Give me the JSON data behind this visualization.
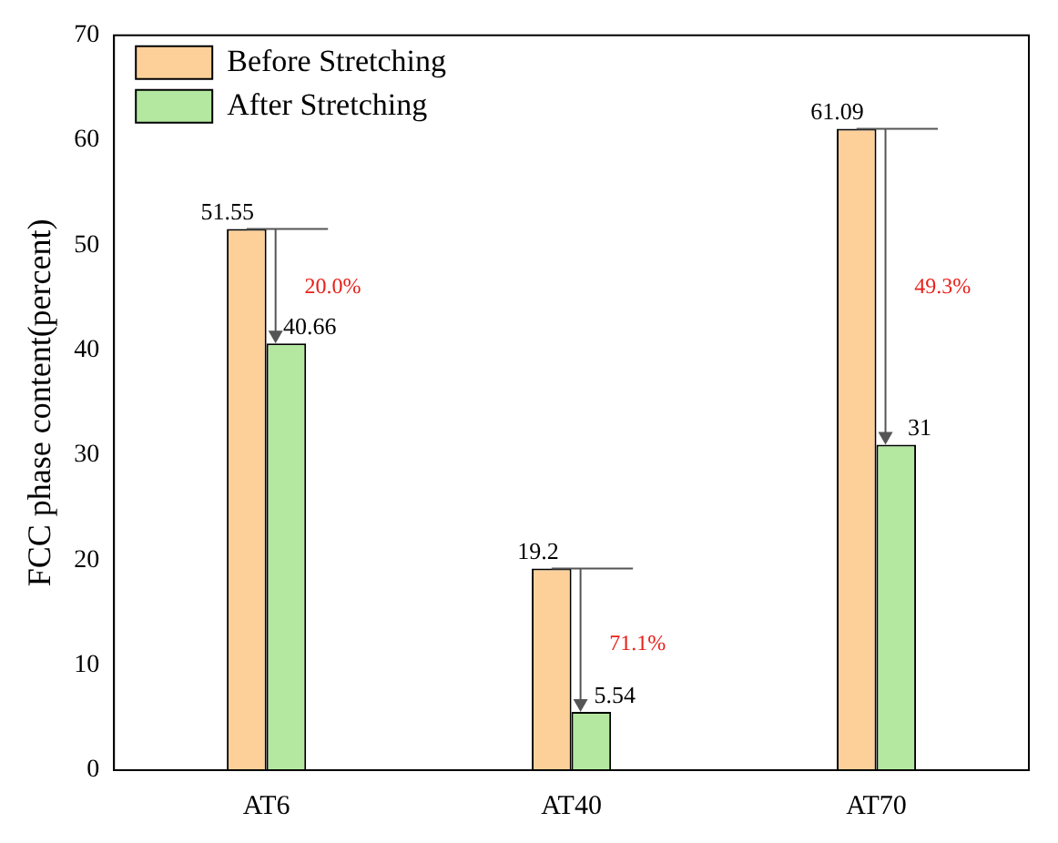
{
  "chart_data": {
    "type": "bar",
    "ylabel": "FCC phase content(percent)",
    "categories": [
      "AT6",
      "AT40",
      "AT70"
    ],
    "series": [
      {
        "name": "Before Stretching",
        "color": "#fdd09a",
        "values": [
          51.55,
          19.2,
          61.09
        ]
      },
      {
        "name": "After Stretching",
        "color": "#b4e8a0",
        "values": [
          40.66,
          5.54,
          31
        ]
      }
    ],
    "ylim": [
      0,
      70
    ],
    "yticks": [
      0,
      10,
      20,
      30,
      40,
      50,
      60,
      70
    ],
    "grid": false,
    "legend": "top left",
    "data_labels": true,
    "annotations": [
      {
        "text": "20.0%",
        "x": "AT6",
        "y": 46
      },
      {
        "text": "71.1%",
        "x": "AT40",
        "y": 12
      },
      {
        "text": "49.3%",
        "x": "AT70",
        "y": 46
      }
    ]
  }
}
